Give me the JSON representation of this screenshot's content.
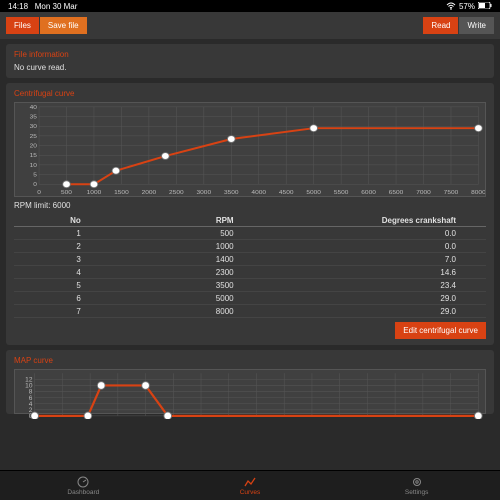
{
  "status": {
    "time": "14:18",
    "date": "Mon 30 Mar",
    "battery": "57%"
  },
  "toolbar": {
    "files": "Files",
    "save": "Save file",
    "read": "Read",
    "write": "Write"
  },
  "file_info": {
    "title": "File information",
    "body": "No curve read."
  },
  "centrifugal": {
    "title": "Centrifugal curve",
    "chart": {
      "type": "line",
      "xlim": [
        0,
        8000
      ],
      "ylim": [
        0,
        40
      ],
      "xticks": [
        0,
        500,
        1000,
        1500,
        2000,
        2500,
        3000,
        3500,
        4000,
        4500,
        5000,
        5500,
        6000,
        6500,
        7000,
        7500,
        8000
      ],
      "yticks": [
        0,
        5,
        10,
        15,
        20,
        25,
        30,
        35,
        40
      ],
      "xtick_labels": [
        "0",
        "500",
        "1000",
        "1500",
        "2000",
        "2500",
        "3000",
        "3500",
        "4000",
        "4500",
        "5000",
        "5500",
        "6000",
        "6500",
        "7000",
        "7500",
        "8000"
      ],
      "ytick_labels": [
        "0",
        "5",
        "10",
        "15",
        "20",
        "25",
        "30",
        "35",
        "40"
      ],
      "points": [
        [
          500,
          0
        ],
        [
          1000,
          0
        ],
        [
          1400,
          7
        ],
        [
          2300,
          14.6
        ],
        [
          3500,
          23.4
        ],
        [
          5000,
          29
        ],
        [
          8000,
          29
        ]
      ],
      "line_color": "#d84213",
      "line_width": 2,
      "marker_color": "#ffffff",
      "marker_border": "#777",
      "marker_radius": 3.5,
      "grid_color": "#555555",
      "bg": "#404040",
      "axis_label_color": "#bbbbbb",
      "axis_fontsize": 6
    },
    "rpm_limit_label": "RPM limit: 6000",
    "table": {
      "headers": [
        "No",
        "RPM",
        "Degrees crankshaft"
      ],
      "rows": [
        [
          "1",
          "500",
          "0.0"
        ],
        [
          "2",
          "1000",
          "0.0"
        ],
        [
          "3",
          "1400",
          "7.0"
        ],
        [
          "4",
          "2300",
          "14.6"
        ],
        [
          "5",
          "3500",
          "23.4"
        ],
        [
          "6",
          "5000",
          "29.0"
        ],
        [
          "7",
          "8000",
          "29.0"
        ]
      ]
    },
    "edit_btn": "Edit centrifugal curve"
  },
  "map": {
    "title": "MAP curve",
    "chart": {
      "type": "line",
      "xlim": [
        0,
        100
      ],
      "ylim": [
        0,
        14
      ],
      "yticks": [
        0,
        2,
        4,
        6,
        8,
        10,
        12
      ],
      "points": [
        [
          0,
          0
        ],
        [
          12,
          0
        ],
        [
          15,
          10
        ],
        [
          25,
          10
        ],
        [
          30,
          0
        ],
        [
          100,
          0
        ]
      ],
      "line_color": "#d84213",
      "line_width": 2,
      "marker_color": "#ffffff",
      "marker_border": "#777",
      "marker_radius": 3.5,
      "grid_color": "#555555",
      "bg": "#404040"
    }
  },
  "nav": {
    "dashboard": "Dashboard",
    "curves": "Curves",
    "settings": "Settings"
  },
  "colors": {
    "accent": "#d84213",
    "panel": "#383838",
    "bg": "#2a2a2a"
  }
}
